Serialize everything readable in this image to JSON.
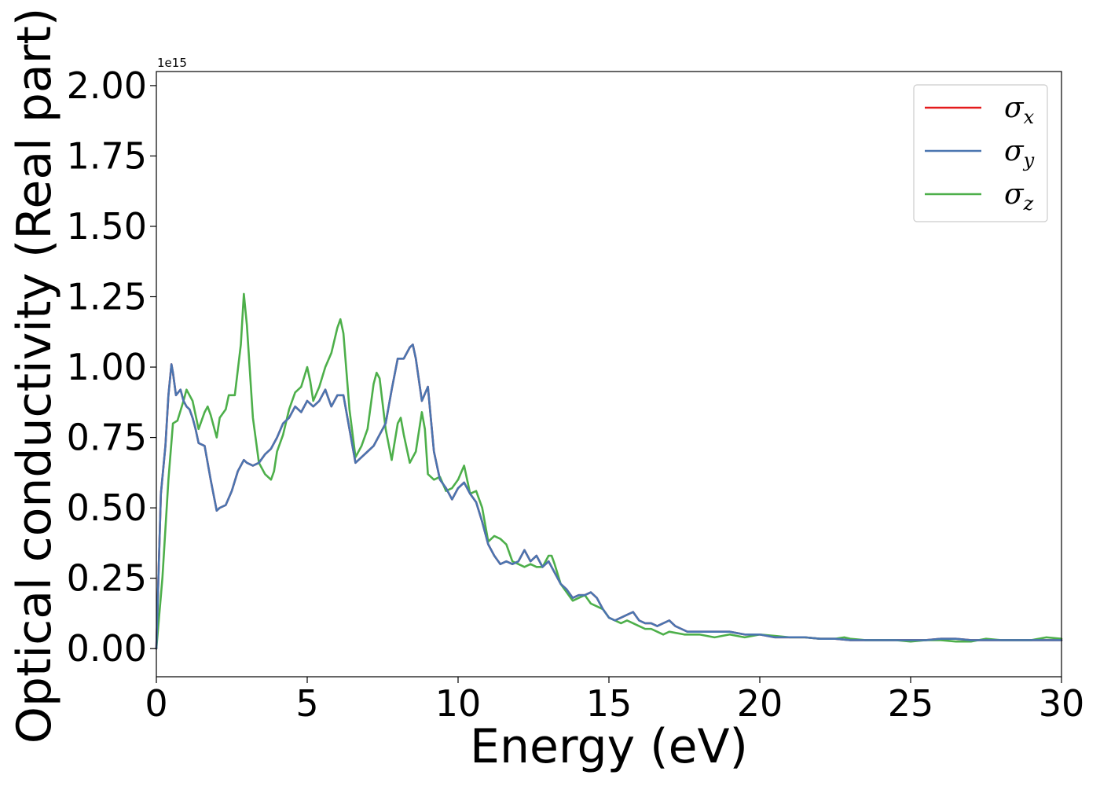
{
  "chart_data": {
    "type": "line",
    "title": "",
    "xlabel": "Energy (eV)",
    "ylabel": "Optical conductivity (Real part)",
    "y_offset_label": "1e15",
    "xlim": [
      0,
      30
    ],
    "ylim": [
      -0.1,
      2.05
    ],
    "x_ticks": [
      0,
      5,
      10,
      15,
      20,
      25,
      30
    ],
    "x_tick_labels": [
      "0",
      "5",
      "10",
      "15",
      "20",
      "25",
      "30"
    ],
    "y_ticks": [
      0.0,
      0.25,
      0.5,
      0.75,
      1.0,
      1.25,
      1.5,
      1.75,
      2.0
    ],
    "y_tick_labels": [
      "0.00",
      "0.25",
      "0.50",
      "0.75",
      "1.00",
      "1.25",
      "1.50",
      "1.75",
      "2.00"
    ],
    "grid": false,
    "legend_position": "top-right",
    "series": [
      {
        "name": "σx",
        "symbol": "σ",
        "subscript": "x",
        "color": "#e41a1c",
        "x": [
          0,
          0.15,
          0.3,
          0.4,
          0.5,
          0.55,
          0.65,
          0.8,
          0.9,
          1.0,
          1.1,
          1.2,
          1.3,
          1.4,
          1.6,
          1.8,
          2.0,
          2.1,
          2.3,
          2.5,
          2.7,
          2.9,
          3.0,
          3.2,
          3.4,
          3.6,
          3.8,
          4.0,
          4.2,
          4.4,
          4.6,
          4.8,
          5.0,
          5.2,
          5.4,
          5.6,
          5.8,
          6.0,
          6.2,
          6.4,
          6.6,
          6.8,
          7.0,
          7.2,
          7.4,
          7.6,
          7.8,
          8.0,
          8.2,
          8.4,
          8.5,
          8.6,
          8.8,
          9.0,
          9.2,
          9.4,
          9.6,
          9.8,
          10.0,
          10.2,
          10.4,
          10.6,
          10.8,
          11.0,
          11.2,
          11.4,
          11.6,
          11.8,
          12.0,
          12.2,
          12.4,
          12.6,
          12.8,
          13.0,
          13.2,
          13.4,
          13.6,
          13.8,
          14.0,
          14.2,
          14.4,
          14.6,
          14.8,
          15.0,
          15.2,
          15.4,
          15.6,
          15.8,
          16.0,
          16.2,
          16.4,
          16.6,
          16.8,
          17.0,
          17.2,
          17.4,
          17.6,
          17.8,
          18.0,
          18.5,
          19.0,
          19.5,
          20.0,
          20.5,
          21.0,
          21.5,
          22.0,
          22.5,
          23.0,
          23.5,
          24.0,
          24.5,
          25.0,
          25.5,
          26.0,
          26.5,
          27.0,
          27.5,
          28.0,
          28.5,
          29.0,
          29.5,
          30.0
        ],
        "y": [
          0.0,
          0.55,
          0.72,
          0.9,
          1.01,
          0.98,
          0.9,
          0.92,
          0.88,
          0.86,
          0.85,
          0.82,
          0.78,
          0.73,
          0.72,
          0.6,
          0.49,
          0.5,
          0.51,
          0.56,
          0.63,
          0.67,
          0.66,
          0.65,
          0.66,
          0.69,
          0.71,
          0.75,
          0.8,
          0.82,
          0.86,
          0.84,
          0.88,
          0.86,
          0.88,
          0.92,
          0.86,
          0.9,
          0.9,
          0.78,
          0.66,
          0.68,
          0.7,
          0.72,
          0.76,
          0.8,
          0.92,
          1.03,
          1.03,
          1.07,
          1.08,
          1.03,
          0.88,
          0.93,
          0.7,
          0.6,
          0.57,
          0.53,
          0.57,
          0.59,
          0.55,
          0.52,
          0.45,
          0.37,
          0.33,
          0.3,
          0.31,
          0.3,
          0.31,
          0.35,
          0.31,
          0.33,
          0.29,
          0.31,
          0.27,
          0.23,
          0.21,
          0.18,
          0.19,
          0.19,
          0.2,
          0.18,
          0.14,
          0.11,
          0.1,
          0.11,
          0.12,
          0.13,
          0.1,
          0.09,
          0.09,
          0.08,
          0.09,
          0.1,
          0.08,
          0.07,
          0.06,
          0.06,
          0.06,
          0.06,
          0.06,
          0.05,
          0.05,
          0.04,
          0.04,
          0.04,
          0.035,
          0.035,
          0.03,
          0.03,
          0.03,
          0.03,
          0.03,
          0.03,
          0.035,
          0.035,
          0.03,
          0.03,
          0.03,
          0.03,
          0.03,
          0.03,
          0.03
        ]
      },
      {
        "name": "σy",
        "symbol": "σ",
        "subscript": "y",
        "color": "#4a75b0",
        "x": [
          0,
          0.15,
          0.3,
          0.4,
          0.5,
          0.55,
          0.65,
          0.8,
          0.9,
          1.0,
          1.1,
          1.2,
          1.3,
          1.4,
          1.6,
          1.8,
          2.0,
          2.1,
          2.3,
          2.5,
          2.7,
          2.9,
          3.0,
          3.2,
          3.4,
          3.6,
          3.8,
          4.0,
          4.2,
          4.4,
          4.6,
          4.8,
          5.0,
          5.2,
          5.4,
          5.6,
          5.8,
          6.0,
          6.2,
          6.4,
          6.6,
          6.8,
          7.0,
          7.2,
          7.4,
          7.6,
          7.8,
          8.0,
          8.2,
          8.4,
          8.5,
          8.6,
          8.8,
          9.0,
          9.2,
          9.4,
          9.6,
          9.8,
          10.0,
          10.2,
          10.4,
          10.6,
          10.8,
          11.0,
          11.2,
          11.4,
          11.6,
          11.8,
          12.0,
          12.2,
          12.4,
          12.6,
          12.8,
          13.0,
          13.2,
          13.4,
          13.6,
          13.8,
          14.0,
          14.2,
          14.4,
          14.6,
          14.8,
          15.0,
          15.2,
          15.4,
          15.6,
          15.8,
          16.0,
          16.2,
          16.4,
          16.6,
          16.8,
          17.0,
          17.2,
          17.4,
          17.6,
          17.8,
          18.0,
          18.5,
          19.0,
          19.5,
          20.0,
          20.5,
          21.0,
          21.5,
          22.0,
          22.5,
          23.0,
          23.5,
          24.0,
          24.5,
          25.0,
          25.5,
          26.0,
          26.5,
          27.0,
          27.5,
          28.0,
          28.5,
          29.0,
          29.5,
          30.0
        ],
        "y": [
          0.0,
          0.55,
          0.72,
          0.9,
          1.01,
          0.98,
          0.9,
          0.92,
          0.88,
          0.86,
          0.85,
          0.82,
          0.78,
          0.73,
          0.72,
          0.6,
          0.49,
          0.5,
          0.51,
          0.56,
          0.63,
          0.67,
          0.66,
          0.65,
          0.66,
          0.69,
          0.71,
          0.75,
          0.8,
          0.82,
          0.86,
          0.84,
          0.88,
          0.86,
          0.88,
          0.92,
          0.86,
          0.9,
          0.9,
          0.78,
          0.66,
          0.68,
          0.7,
          0.72,
          0.76,
          0.8,
          0.92,
          1.03,
          1.03,
          1.07,
          1.08,
          1.03,
          0.88,
          0.93,
          0.7,
          0.6,
          0.57,
          0.53,
          0.57,
          0.59,
          0.55,
          0.52,
          0.45,
          0.37,
          0.33,
          0.3,
          0.31,
          0.3,
          0.31,
          0.35,
          0.31,
          0.33,
          0.29,
          0.31,
          0.27,
          0.23,
          0.21,
          0.18,
          0.19,
          0.19,
          0.2,
          0.18,
          0.14,
          0.11,
          0.1,
          0.11,
          0.12,
          0.13,
          0.1,
          0.09,
          0.09,
          0.08,
          0.09,
          0.1,
          0.08,
          0.07,
          0.06,
          0.06,
          0.06,
          0.06,
          0.06,
          0.05,
          0.05,
          0.04,
          0.04,
          0.04,
          0.035,
          0.035,
          0.03,
          0.03,
          0.03,
          0.03,
          0.03,
          0.03,
          0.035,
          0.035,
          0.03,
          0.03,
          0.03,
          0.03,
          0.03,
          0.03,
          0.03
        ]
      },
      {
        "name": "σz",
        "symbol": "σ",
        "subscript": "z",
        "color": "#4daf4a",
        "x": [
          0,
          0.2,
          0.4,
          0.55,
          0.7,
          0.9,
          1.0,
          1.2,
          1.4,
          1.6,
          1.7,
          1.8,
          2.0,
          2.1,
          2.3,
          2.4,
          2.6,
          2.8,
          2.9,
          3.0,
          3.2,
          3.4,
          3.6,
          3.8,
          3.9,
          4.0,
          4.2,
          4.4,
          4.6,
          4.8,
          5.0,
          5.1,
          5.2,
          5.4,
          5.6,
          5.8,
          6.0,
          6.1,
          6.2,
          6.4,
          6.6,
          6.8,
          7.0,
          7.2,
          7.3,
          7.4,
          7.6,
          7.8,
          8.0,
          8.1,
          8.2,
          8.4,
          8.6,
          8.8,
          8.9,
          9.0,
          9.2,
          9.4,
          9.6,
          9.8,
          10.0,
          10.2,
          10.4,
          10.6,
          10.8,
          11.0,
          11.2,
          11.4,
          11.6,
          11.8,
          12.0,
          12.2,
          12.4,
          12.6,
          12.8,
          13.0,
          13.1,
          13.2,
          13.4,
          13.6,
          13.8,
          14.0,
          14.2,
          14.4,
          14.6,
          14.8,
          15.0,
          15.2,
          15.4,
          15.6,
          15.8,
          16.0,
          16.2,
          16.4,
          16.6,
          16.8,
          17.0,
          17.5,
          18.0,
          18.5,
          19.0,
          19.5,
          20.0,
          20.5,
          21.0,
          21.5,
          22.0,
          22.5,
          22.8,
          23.0,
          23.5,
          24.0,
          24.5,
          25.0,
          25.5,
          26.0,
          26.5,
          27.0,
          27.5,
          28.0,
          28.5,
          29.0,
          29.5,
          30.0
        ],
        "y": [
          0.0,
          0.25,
          0.6,
          0.8,
          0.81,
          0.88,
          0.92,
          0.88,
          0.78,
          0.84,
          0.86,
          0.83,
          0.75,
          0.82,
          0.85,
          0.9,
          0.9,
          1.08,
          1.26,
          1.15,
          0.82,
          0.66,
          0.62,
          0.6,
          0.63,
          0.7,
          0.76,
          0.85,
          0.91,
          0.93,
          1.0,
          0.95,
          0.88,
          0.93,
          1.0,
          1.05,
          1.14,
          1.17,
          1.12,
          0.85,
          0.68,
          0.72,
          0.78,
          0.94,
          0.98,
          0.96,
          0.78,
          0.67,
          0.8,
          0.82,
          0.76,
          0.66,
          0.7,
          0.84,
          0.78,
          0.62,
          0.6,
          0.61,
          0.56,
          0.57,
          0.6,
          0.65,
          0.55,
          0.56,
          0.5,
          0.38,
          0.4,
          0.39,
          0.37,
          0.31,
          0.3,
          0.29,
          0.3,
          0.29,
          0.29,
          0.33,
          0.33,
          0.3,
          0.23,
          0.2,
          0.17,
          0.18,
          0.19,
          0.16,
          0.15,
          0.14,
          0.11,
          0.1,
          0.09,
          0.1,
          0.09,
          0.08,
          0.07,
          0.07,
          0.06,
          0.05,
          0.06,
          0.05,
          0.05,
          0.04,
          0.05,
          0.04,
          0.05,
          0.045,
          0.04,
          0.04,
          0.035,
          0.035,
          0.04,
          0.035,
          0.03,
          0.03,
          0.03,
          0.025,
          0.03,
          0.03,
          0.025,
          0.025,
          0.035,
          0.03,
          0.03,
          0.03,
          0.04,
          0.035
        ]
      }
    ]
  }
}
